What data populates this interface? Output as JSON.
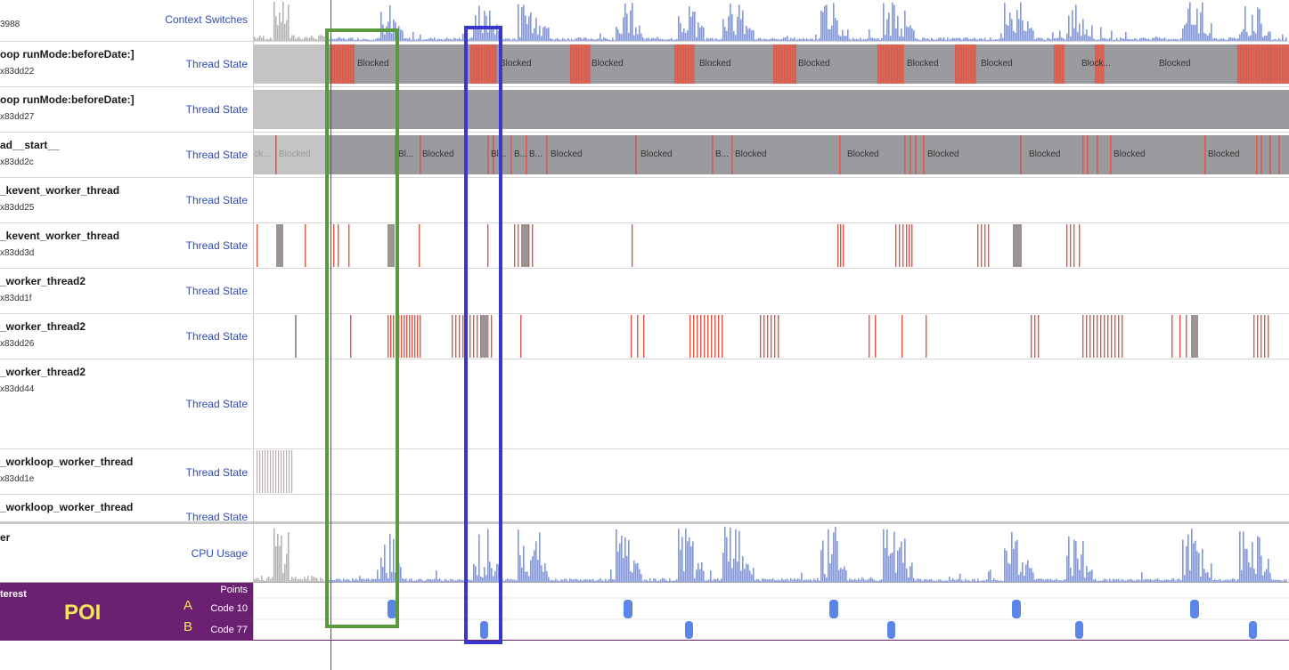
{
  "rows": [
    {
      "name": "",
      "tid": "3988",
      "instrument": "Context Switches",
      "type": "cs"
    },
    {
      "name": "oop runMode:beforeDate:]",
      "tid": "x83dd22",
      "instrument": "Thread State",
      "type": "ts1"
    },
    {
      "name": "oop runMode:beforeDate:]",
      "tid": "x83dd27",
      "instrument": "Thread State",
      "type": "ts2"
    },
    {
      "name": "ad__start__",
      "tid": "x83dd2c",
      "instrument": "Thread State",
      "type": "ts3"
    },
    {
      "name": "_kevent_worker_thread",
      "tid": "x83dd25",
      "instrument": "Thread State",
      "type": "empty"
    },
    {
      "name": "_kevent_worker_thread",
      "tid": "x83dd3d",
      "instrument": "Thread State",
      "type": "spikes1"
    },
    {
      "name": "_worker_thread2",
      "tid": "x83dd1f",
      "instrument": "Thread State",
      "type": "empty"
    },
    {
      "name": "_worker_thread2",
      "tid": "x83dd26",
      "instrument": "Thread State",
      "type": "spikes2"
    },
    {
      "name": "_worker_thread2",
      "tid": "x83dd44",
      "instrument": "Thread State",
      "type": "empty"
    },
    {
      "name": "_workloop_worker_thread",
      "tid": "x83dd1e",
      "instrument": "Thread State",
      "type": "spikes3"
    },
    {
      "name": "_workloop_worker_thread",
      "tid": "",
      "instrument": "Thread State",
      "type": "empty"
    },
    {
      "name": "er",
      "tid": "",
      "instrument": "CPU Usage",
      "type": "cpu"
    }
  ],
  "blocked_labels": {
    "row1": [
      "Blocked",
      "Blocked",
      "Blocked",
      "Blocked",
      "Blocked",
      "Blocked",
      "Blocked",
      "Block...",
      "Blocked"
    ],
    "row3": [
      "ck...",
      "Blocked",
      "Bl...",
      "Blocked",
      "Bl...",
      "B...",
      "B...",
      "Blocked",
      "Blocked",
      "B...",
      "Blocked",
      "Blocked",
      "Blocked",
      "Blocked",
      "Blocked",
      "Blocked"
    ]
  },
  "poi": {
    "header": "terest",
    "title": "POI",
    "points_label": "Points",
    "code_a_letter": "A",
    "code_a_label": "Code 10",
    "code_b_letter": "B",
    "code_b_label": "Code 77"
  },
  "colors": {
    "cpu_bar": "#7b97ee",
    "cpu_bar_idle": "#b9b3b7",
    "running": "#e0584a",
    "blocked": "#9b9a9e",
    "blocked_light": "#c4c3c5",
    "poi_purple": "#6b2072",
    "poi_marker": "#5b86e8",
    "highlight_green": "#5b9a3c",
    "highlight_blue": "#3838d0"
  }
}
